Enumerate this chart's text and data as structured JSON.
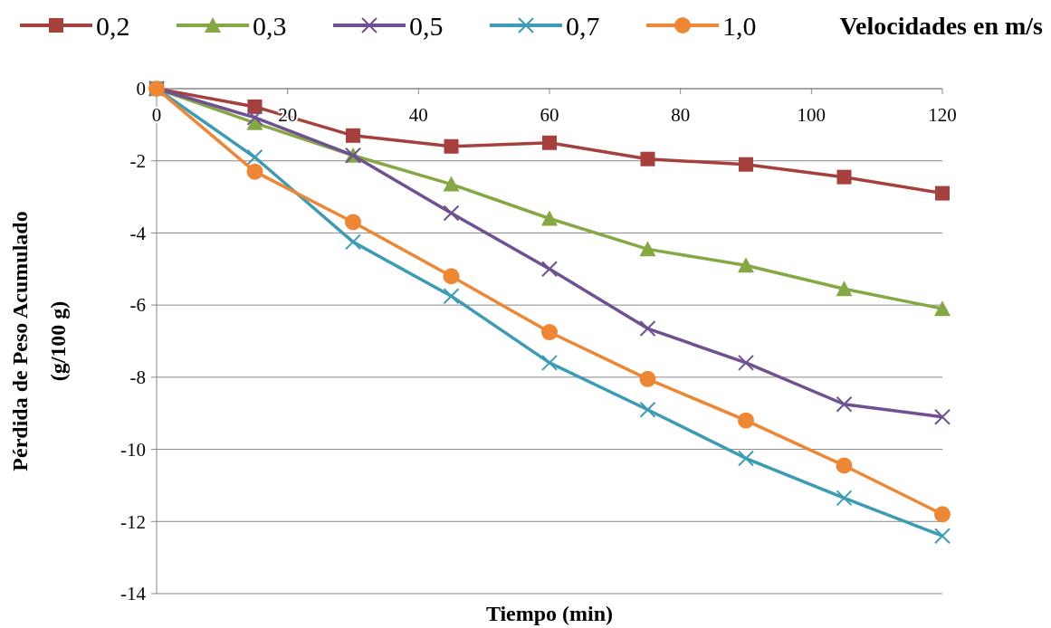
{
  "chart_data": {
    "type": "line",
    "xlabel": "Tiempo (min)",
    "ylabel": "Pérdida de Peso Acumulado\n(g/100 g)",
    "legend_title": "Velocidades en m/s",
    "legend": "top",
    "grid": "y",
    "x": [
      0,
      15,
      30,
      45,
      60,
      75,
      90,
      105,
      120
    ],
    "xlim": [
      0,
      120
    ],
    "xticks": [
      0,
      20,
      40,
      60,
      80,
      100,
      120
    ],
    "ylim": [
      -14,
      0
    ],
    "yticks": [
      -14,
      -12,
      -10,
      -8,
      -6,
      -4,
      -2,
      0
    ],
    "series": [
      {
        "name": "0,2",
        "color": "#a5403c",
        "marker": "square",
        "values": [
          0,
          -0.5,
          -1.3,
          -1.6,
          -1.5,
          -1.95,
          -2.1,
          -2.45,
          -2.9
        ]
      },
      {
        "name": "0,3",
        "color": "#86a844",
        "marker": "triangle",
        "values": [
          0,
          -0.95,
          -1.85,
          -2.65,
          -3.6,
          -4.45,
          -4.9,
          -5.55,
          -6.1
        ]
      },
      {
        "name": "0,5",
        "color": "#6f5191",
        "marker": "cross",
        "values": [
          0,
          -0.8,
          -1.85,
          -3.45,
          -5,
          -6.65,
          -7.6,
          -8.75,
          -9.1
        ]
      },
      {
        "name": "0,7",
        "color": "#3d9cb5",
        "marker": "cross",
        "values": [
          0,
          -1.9,
          -4.25,
          -5.75,
          -7.6,
          -8.9,
          -10.25,
          -11.35,
          -12.4
        ]
      },
      {
        "name": "1,0",
        "color": "#ee8733",
        "marker": "circle",
        "values": [
          0,
          -2.3,
          -3.7,
          -5.2,
          -6.75,
          -8.05,
          -9.2,
          -10.45,
          -11.8
        ]
      }
    ]
  }
}
